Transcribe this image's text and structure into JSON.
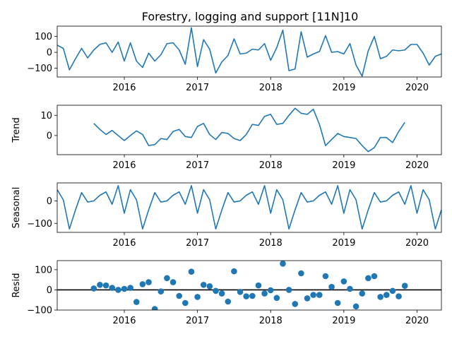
{
  "chart_data": {
    "type": "line",
    "title": "Forestry, logging and support  [11N]10",
    "xlim": [
      2015.083,
      2020.333
    ],
    "xticks": [
      2016,
      2017,
      2018,
      2019,
      2020
    ],
    "line_color": "#1f77b4",
    "marker_color": "#1f77b4",
    "panels": [
      {
        "name": "observed",
        "ylabel": "",
        "kind": "line",
        "ylim": [
          -155,
          165
        ],
        "yticks": [
          100,
          0,
          -100
        ],
        "x_start": 2015.083,
        "x_step": 0.0833333,
        "values": [
          45,
          25,
          -110,
          -40,
          25,
          -35,
          15,
          50,
          60,
          0,
          65,
          -55,
          60,
          -55,
          -95,
          -5,
          -55,
          -15,
          55,
          60,
          15,
          -75,
          155,
          -90,
          80,
          20,
          -130,
          -60,
          -20,
          85,
          -10,
          -5,
          20,
          15,
          55,
          -50,
          30,
          140,
          -115,
          -105,
          130,
          -30,
          -10,
          5,
          105,
          0,
          5,
          -10,
          55,
          -80,
          -150,
          10,
          100,
          -40,
          -25,
          15,
          10,
          15,
          50,
          50,
          -5,
          -80,
          -25,
          -10
        ]
      },
      {
        "name": "trend",
        "ylabel": "Trend",
        "kind": "line",
        "ylim": [
          -9.5,
          15
        ],
        "yticks": [
          10,
          0
        ],
        "x_start": 2015.583,
        "x_step": 0.0833333,
        "values": [
          6,
          3,
          0.5,
          2.5,
          0,
          -2.5,
          0,
          2.3,
          0.5,
          -5,
          -4.5,
          -1.5,
          -2,
          2,
          3,
          -0.5,
          -1,
          4.5,
          6,
          0.5,
          -2,
          1.5,
          1,
          -1.5,
          -2.5,
          0.5,
          5.5,
          5,
          9.5,
          10.5,
          5.5,
          6,
          10,
          13.5,
          11,
          10.5,
          13,
          5.5,
          -5,
          -2,
          1,
          -0.5,
          -1,
          -1.5,
          -5,
          -8,
          -6,
          -1,
          -1,
          -3.5,
          2,
          6.5
        ]
      },
      {
        "name": "seasonal",
        "ylabel": "Seasonal",
        "kind": "line",
        "ylim": [
          -140,
          80
        ],
        "yticks": [
          0,
          -100
        ],
        "x_start": 2015.083,
        "x_step": 0.0833333,
        "values": [
          50,
          5,
          -125,
          -40,
          37,
          -5,
          0,
          25,
          40,
          -15,
          68,
          -55,
          50,
          5,
          -125,
          -40,
          37,
          -5,
          0,
          25,
          40,
          -15,
          68,
          -55,
          50,
          5,
          -125,
          -40,
          37,
          -5,
          0,
          25,
          40,
          -15,
          68,
          -55,
          50,
          5,
          -125,
          -40,
          37,
          -5,
          0,
          25,
          40,
          -15,
          68,
          -55,
          50,
          5,
          -125,
          -40,
          37,
          -5,
          0,
          25,
          40,
          -15,
          68,
          -55,
          50,
          5,
          -125,
          -40
        ]
      },
      {
        "name": "resid",
        "ylabel": "Resid",
        "kind": "scatter",
        "ylim": [
          -100,
          145
        ],
        "yticks": [
          100,
          0,
          -100
        ],
        "baseline": 0,
        "x_start": 2015.583,
        "x_step": 0.0833333,
        "values": [
          7,
          25,
          22,
          10,
          0,
          5,
          10,
          -60,
          28,
          38,
          -95,
          -8,
          58,
          38,
          -30,
          -65,
          90,
          -35,
          25,
          18,
          -5,
          -18,
          -58,
          92,
          -10,
          -32,
          -30,
          22,
          -18,
          -2,
          -40,
          130,
          0,
          -70,
          82,
          -42,
          -25,
          -25,
          68,
          15,
          -65,
          42,
          5,
          -82,
          -18,
          58,
          68,
          -35,
          -25,
          -5,
          -32,
          20
        ]
      }
    ]
  }
}
